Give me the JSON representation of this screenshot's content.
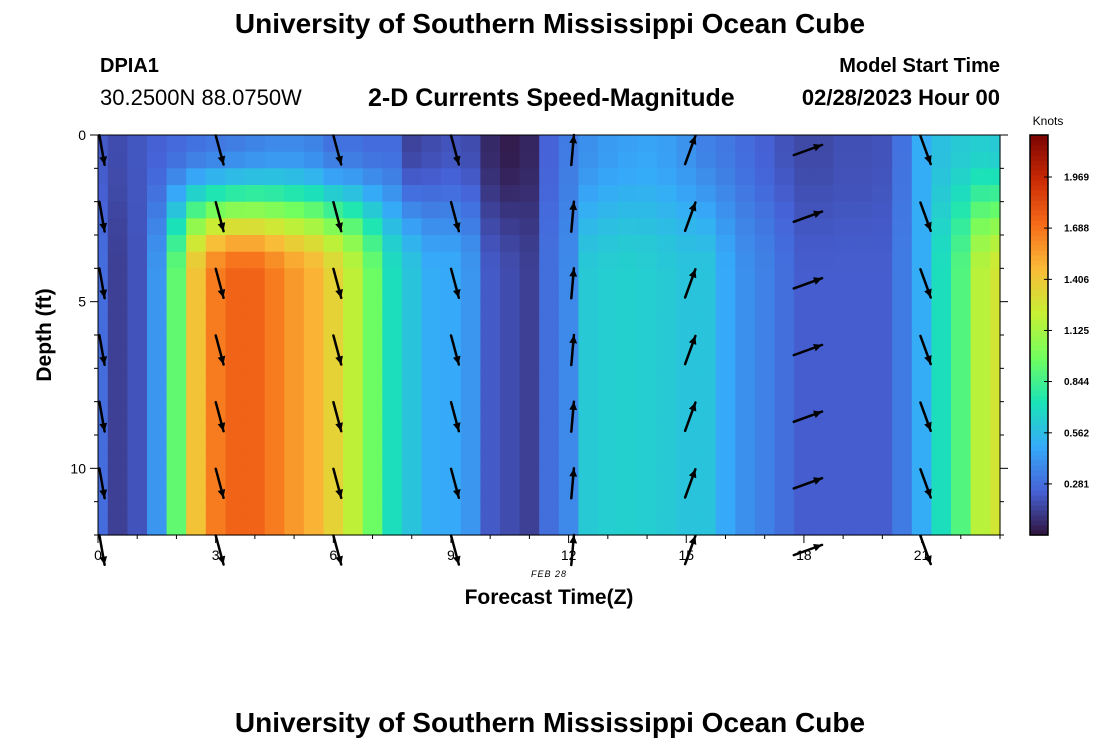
{
  "page": {
    "title": "University of Southern Mississippi Ocean Cube",
    "footer_title": "University of Southern Mississippi Ocean Cube"
  },
  "station": {
    "id": "DPIA1",
    "coords": "30.2500N  88.0750W"
  },
  "model": {
    "heading": "Model Start Time",
    "start": "02/28/2023 Hour 00"
  },
  "chart_data": {
    "type": "heatmap",
    "title": "2-D Currents Speed-Magnitude",
    "xlabel": "Forecast Time(Z)",
    "ylabel": "Depth (ft)",
    "date_label": "FEB 28",
    "xlim": [
      0,
      23
    ],
    "ylim": [
      0,
      12
    ],
    "x_ticks": [
      "0",
      "3",
      "6",
      "9",
      "12",
      "15",
      "18",
      "21"
    ],
    "y_ticks": [
      "0",
      "5",
      "10"
    ],
    "units_label": "Knots",
    "colorbar_ticks": [
      "1.969",
      "1.688",
      "1.406",
      "1.125",
      "0.844",
      "0.562",
      "0.281"
    ],
    "colorbar_range": [
      0,
      2.2
    ],
    "colors": [
      "#30123b",
      "#4662d7",
      "#36aaf9",
      "#1ae4b6",
      "#72fe5e",
      "#c7ef34",
      "#fabb38",
      "#f66b19",
      "#cb2a04",
      "#7a0403"
    ],
    "hours": [
      0,
      0.5,
      1,
      1.5,
      2,
      2.5,
      3,
      3.5,
      4,
      4.5,
      5,
      5.5,
      6,
      6.5,
      7,
      7.5,
      8,
      8.5,
      9,
      9.5,
      10,
      10.5,
      11,
      11.5,
      12,
      12.5,
      13,
      13.5,
      14,
      14.5,
      15,
      15.5,
      16,
      16.5,
      17,
      17.5,
      18,
      18.5,
      19,
      19.5,
      20,
      20.5,
      21,
      21.5,
      22,
      22.5,
      23
    ],
    "depths": [
      0,
      0.5,
      1,
      1.5,
      2,
      2.5,
      3,
      3.5,
      4,
      4.5,
      5,
      5.5,
      6,
      6.5,
      7,
      7.5,
      8,
      8.5,
      9,
      9.5,
      10,
      10.5,
      11,
      11.5
    ],
    "speed_profile_by_hour": [
      0.28,
      0.14,
      0.2,
      0.42,
      0.93,
      1.43,
      1.66,
      1.74,
      1.74,
      1.66,
      1.57,
      1.49,
      1.36,
      1.2,
      0.96,
      0.71,
      0.6,
      0.5,
      0.49,
      0.42,
      0.22,
      0.18,
      0.14,
      0.29,
      0.38,
      0.62,
      0.64,
      0.65,
      0.64,
      0.62,
      0.6,
      0.6,
      0.49,
      0.4,
      0.35,
      0.29,
      0.23,
      0.23,
      0.23,
      0.23,
      0.23,
      0.33,
      0.5,
      0.71,
      0.89,
      1.18,
      1.27
    ],
    "speed_surface_by_hour": [
      0.22,
      0.18,
      0.21,
      0.24,
      0.27,
      0.3,
      0.32,
      0.34,
      0.36,
      0.38,
      0.38,
      0.36,
      0.3,
      0.3,
      0.28,
      0.28,
      0.15,
      0.18,
      0.2,
      0.18,
      0.07,
      0.03,
      0.06,
      0.25,
      0.33,
      0.4,
      0.44,
      0.46,
      0.47,
      0.45,
      0.41,
      0.35,
      0.32,
      0.28,
      0.24,
      0.2,
      0.17,
      0.17,
      0.19,
      0.19,
      0.2,
      0.3,
      0.5,
      0.58,
      0.62,
      0.64,
      0.62
    ],
    "vectors": {
      "hours": [
        0,
        3,
        6,
        9,
        12,
        15,
        18,
        21
      ],
      "depths": [
        0,
        2,
        4,
        6,
        8,
        10,
        12
      ],
      "direction_deg": [
        170,
        165,
        165,
        165,
        5,
        20,
        70,
        160
      ]
    }
  }
}
